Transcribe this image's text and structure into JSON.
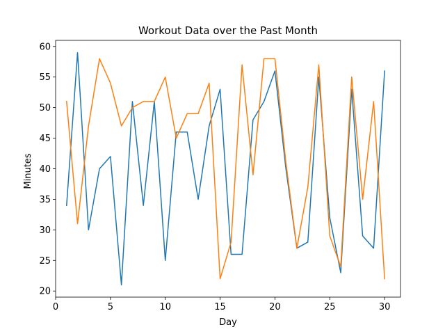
{
  "chart_data": {
    "type": "line",
    "title": "Workout Data over the Past Month",
    "xlabel": "Day",
    "ylabel": "Minutes",
    "xlim": [
      0,
      31.45
    ],
    "ylim": [
      19.0,
      61.0
    ],
    "xticks": [
      0,
      5,
      10,
      15,
      20,
      25,
      30
    ],
    "yticks": [
      20,
      25,
      30,
      35,
      40,
      45,
      50,
      55,
      60
    ],
    "grid": false,
    "legend": "none",
    "x": [
      1,
      2,
      3,
      4,
      5,
      6,
      7,
      8,
      9,
      10,
      11,
      12,
      13,
      14,
      15,
      16,
      17,
      18,
      19,
      20,
      21,
      22,
      23,
      24,
      25,
      26,
      27,
      28,
      29,
      30
    ],
    "series": [
      {
        "color": "#1f77b4",
        "values": [
          34,
          59,
          30,
          40,
          42,
          21,
          51,
          34,
          51,
          25,
          46,
          46,
          35,
          47,
          53,
          26,
          26,
          48,
          51,
          56,
          40,
          27,
          28,
          55,
          32,
          23,
          53,
          29,
          27,
          56
        ]
      },
      {
        "color": "#ff7f0e",
        "values": [
          51,
          31,
          47,
          58,
          54,
          47,
          50,
          51,
          51,
          55,
          45,
          49,
          49,
          54,
          22,
          28,
          57,
          39,
          58,
          58,
          41,
          27,
          37,
          57,
          29,
          24,
          55,
          35,
          51,
          22
        ]
      }
    ]
  }
}
